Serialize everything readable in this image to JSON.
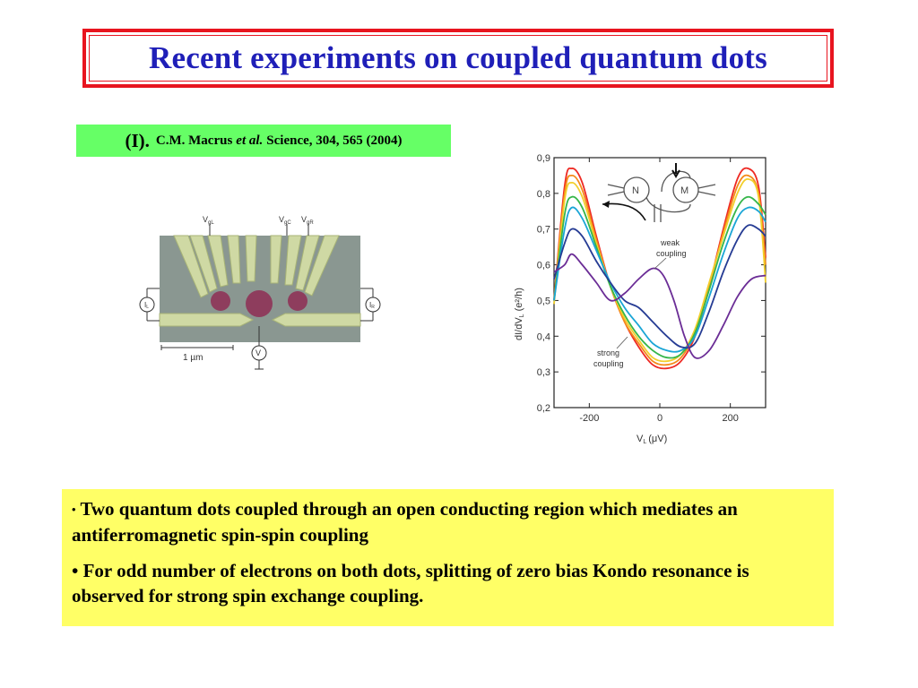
{
  "slide": {
    "title": "Recent experiments on coupled quantum dots",
    "citation": {
      "roman": "(I).",
      "authors": "C.M. Macrus",
      "etal": "et al.",
      "journal": "Science, 304, 565 (2004)"
    },
    "device_figure": {
      "gate_labels": [
        "V",
        "V",
        "V"
      ],
      "gate_subscripts": [
        "gL",
        "gC",
        "gR"
      ],
      "lead_left": "I",
      "lead_left_sub": "L",
      "lead_right": "I",
      "lead_right_sub": "R",
      "meter": "V",
      "scale_bar": "1 µm"
    },
    "bullets": [
      {
        "marker": "•",
        "text": "Two quantum dots coupled through an open conducting region which mediates an antiferromagnetic spin-spin coupling"
      },
      {
        "marker": "•",
        "text": "For odd number of electrons on both dots, splitting of zero bias Kondo resonance is observed for strong spin exchange coupling."
      }
    ],
    "colors": {
      "title_text": "#1f1fb8",
      "title_border": "#e8141f",
      "citation_bg": "#66ff66",
      "notes_bg": "#ffff66"
    }
  },
  "chart_data": {
    "type": "line",
    "x_ticks": [
      "-200",
      "0",
      "200"
    ],
    "y_ticks": [
      "0,9",
      "0,8",
      "0,7",
      "0,6",
      "0,5",
      "0,4",
      "0,3",
      "0,2"
    ],
    "xlabel": "V",
    "xlabel_sub": "L",
    "xlabel_unit": "(μV)",
    "ylabel": "dI/dV",
    "ylabel_sub": "L",
    "ylabel_unit": "(e²/h)",
    "xlim": [
      -300,
      300
    ],
    "ylim": [
      0.2,
      0.9
    ],
    "grid": false,
    "inset_labels": {
      "left_dot": "N",
      "right_dot": "M"
    },
    "annotations": {
      "weak": [
        "weak",
        "coupling"
      ],
      "strong": [
        "strong",
        "coupling"
      ]
    },
    "series": [
      {
        "color": "#ee2a24",
        "points": [
          [
            -300,
            0.5
          ],
          [
            -270,
            0.82
          ],
          [
            -250,
            0.87
          ],
          [
            -220,
            0.83
          ],
          [
            -180,
            0.68
          ],
          [
            -140,
            0.54
          ],
          [
            -100,
            0.44
          ],
          [
            -60,
            0.37
          ],
          [
            -20,
            0.32
          ],
          [
            20,
            0.31
          ],
          [
            60,
            0.33
          ],
          [
            100,
            0.4
          ],
          [
            140,
            0.54
          ],
          [
            180,
            0.7
          ],
          [
            220,
            0.84
          ],
          [
            250,
            0.87
          ],
          [
            280,
            0.82
          ],
          [
            300,
            0.62
          ]
        ]
      },
      {
        "color": "#f48a1a",
        "points": [
          [
            -300,
            0.5
          ],
          [
            -270,
            0.8
          ],
          [
            -250,
            0.85
          ],
          [
            -220,
            0.81
          ],
          [
            -180,
            0.67
          ],
          [
            -140,
            0.54
          ],
          [
            -100,
            0.44
          ],
          [
            -60,
            0.38
          ],
          [
            -20,
            0.33
          ],
          [
            20,
            0.32
          ],
          [
            60,
            0.34
          ],
          [
            100,
            0.41
          ],
          [
            140,
            0.54
          ],
          [
            180,
            0.69
          ],
          [
            220,
            0.82
          ],
          [
            250,
            0.85
          ],
          [
            280,
            0.8
          ],
          [
            300,
            0.6
          ]
        ]
      },
      {
        "color": "#f2cf2b",
        "points": [
          [
            -300,
            0.49
          ],
          [
            -270,
            0.78
          ],
          [
            -250,
            0.83
          ],
          [
            -220,
            0.79
          ],
          [
            -180,
            0.66
          ],
          [
            -140,
            0.54
          ],
          [
            -100,
            0.45
          ],
          [
            -60,
            0.39
          ],
          [
            -20,
            0.34
          ],
          [
            20,
            0.33
          ],
          [
            60,
            0.35
          ],
          [
            100,
            0.42
          ],
          [
            140,
            0.55
          ],
          [
            180,
            0.68
          ],
          [
            220,
            0.8
          ],
          [
            250,
            0.84
          ],
          [
            280,
            0.79
          ],
          [
            300,
            0.55
          ]
        ]
      },
      {
        "color": "#36b64a",
        "points": [
          [
            -300,
            0.5
          ],
          [
            -270,
            0.74
          ],
          [
            -250,
            0.79
          ],
          [
            -220,
            0.76
          ],
          [
            -180,
            0.65
          ],
          [
            -140,
            0.54
          ],
          [
            -100,
            0.46
          ],
          [
            -60,
            0.4
          ],
          [
            -20,
            0.36
          ],
          [
            20,
            0.34
          ],
          [
            60,
            0.35
          ],
          [
            100,
            0.41
          ],
          [
            140,
            0.53
          ],
          [
            180,
            0.66
          ],
          [
            220,
            0.76
          ],
          [
            250,
            0.79
          ],
          [
            280,
            0.77
          ],
          [
            300,
            0.74
          ]
        ]
      },
      {
        "color": "#1aa5d6",
        "points": [
          [
            -300,
            0.5
          ],
          [
            -270,
            0.7
          ],
          [
            -250,
            0.76
          ],
          [
            -220,
            0.73
          ],
          [
            -180,
            0.64
          ],
          [
            -140,
            0.55
          ],
          [
            -100,
            0.48
          ],
          [
            -60,
            0.43
          ],
          [
            -20,
            0.38
          ],
          [
            20,
            0.36
          ],
          [
            60,
            0.36
          ],
          [
            100,
            0.4
          ],
          [
            140,
            0.51
          ],
          [
            180,
            0.63
          ],
          [
            220,
            0.73
          ],
          [
            250,
            0.76
          ],
          [
            280,
            0.75
          ],
          [
            300,
            0.72
          ]
        ]
      },
      {
        "color": "#263c94",
        "points": [
          [
            -300,
            0.56
          ],
          [
            -270,
            0.66
          ],
          [
            -250,
            0.7
          ],
          [
            -220,
            0.68
          ],
          [
            -180,
            0.61
          ],
          [
            -140,
            0.55
          ],
          [
            -100,
            0.5
          ],
          [
            -60,
            0.48
          ],
          [
            -20,
            0.44
          ],
          [
            20,
            0.4
          ],
          [
            60,
            0.37
          ],
          [
            100,
            0.38
          ],
          [
            140,
            0.47
          ],
          [
            180,
            0.58
          ],
          [
            220,
            0.67
          ],
          [
            250,
            0.71
          ],
          [
            280,
            0.7
          ],
          [
            300,
            0.68
          ]
        ]
      },
      {
        "color": "#6b2d96",
        "points": [
          [
            -300,
            0.58
          ],
          [
            -270,
            0.6
          ],
          [
            -250,
            0.63
          ],
          [
            -220,
            0.6
          ],
          [
            -180,
            0.55
          ],
          [
            -140,
            0.5
          ],
          [
            -100,
            0.52
          ],
          [
            -60,
            0.56
          ],
          [
            -20,
            0.59
          ],
          [
            10,
            0.57
          ],
          [
            40,
            0.5
          ],
          [
            70,
            0.4
          ],
          [
            100,
            0.34
          ],
          [
            140,
            0.36
          ],
          [
            180,
            0.43
          ],
          [
            220,
            0.51
          ],
          [
            260,
            0.56
          ],
          [
            300,
            0.57
          ]
        ]
      }
    ]
  }
}
